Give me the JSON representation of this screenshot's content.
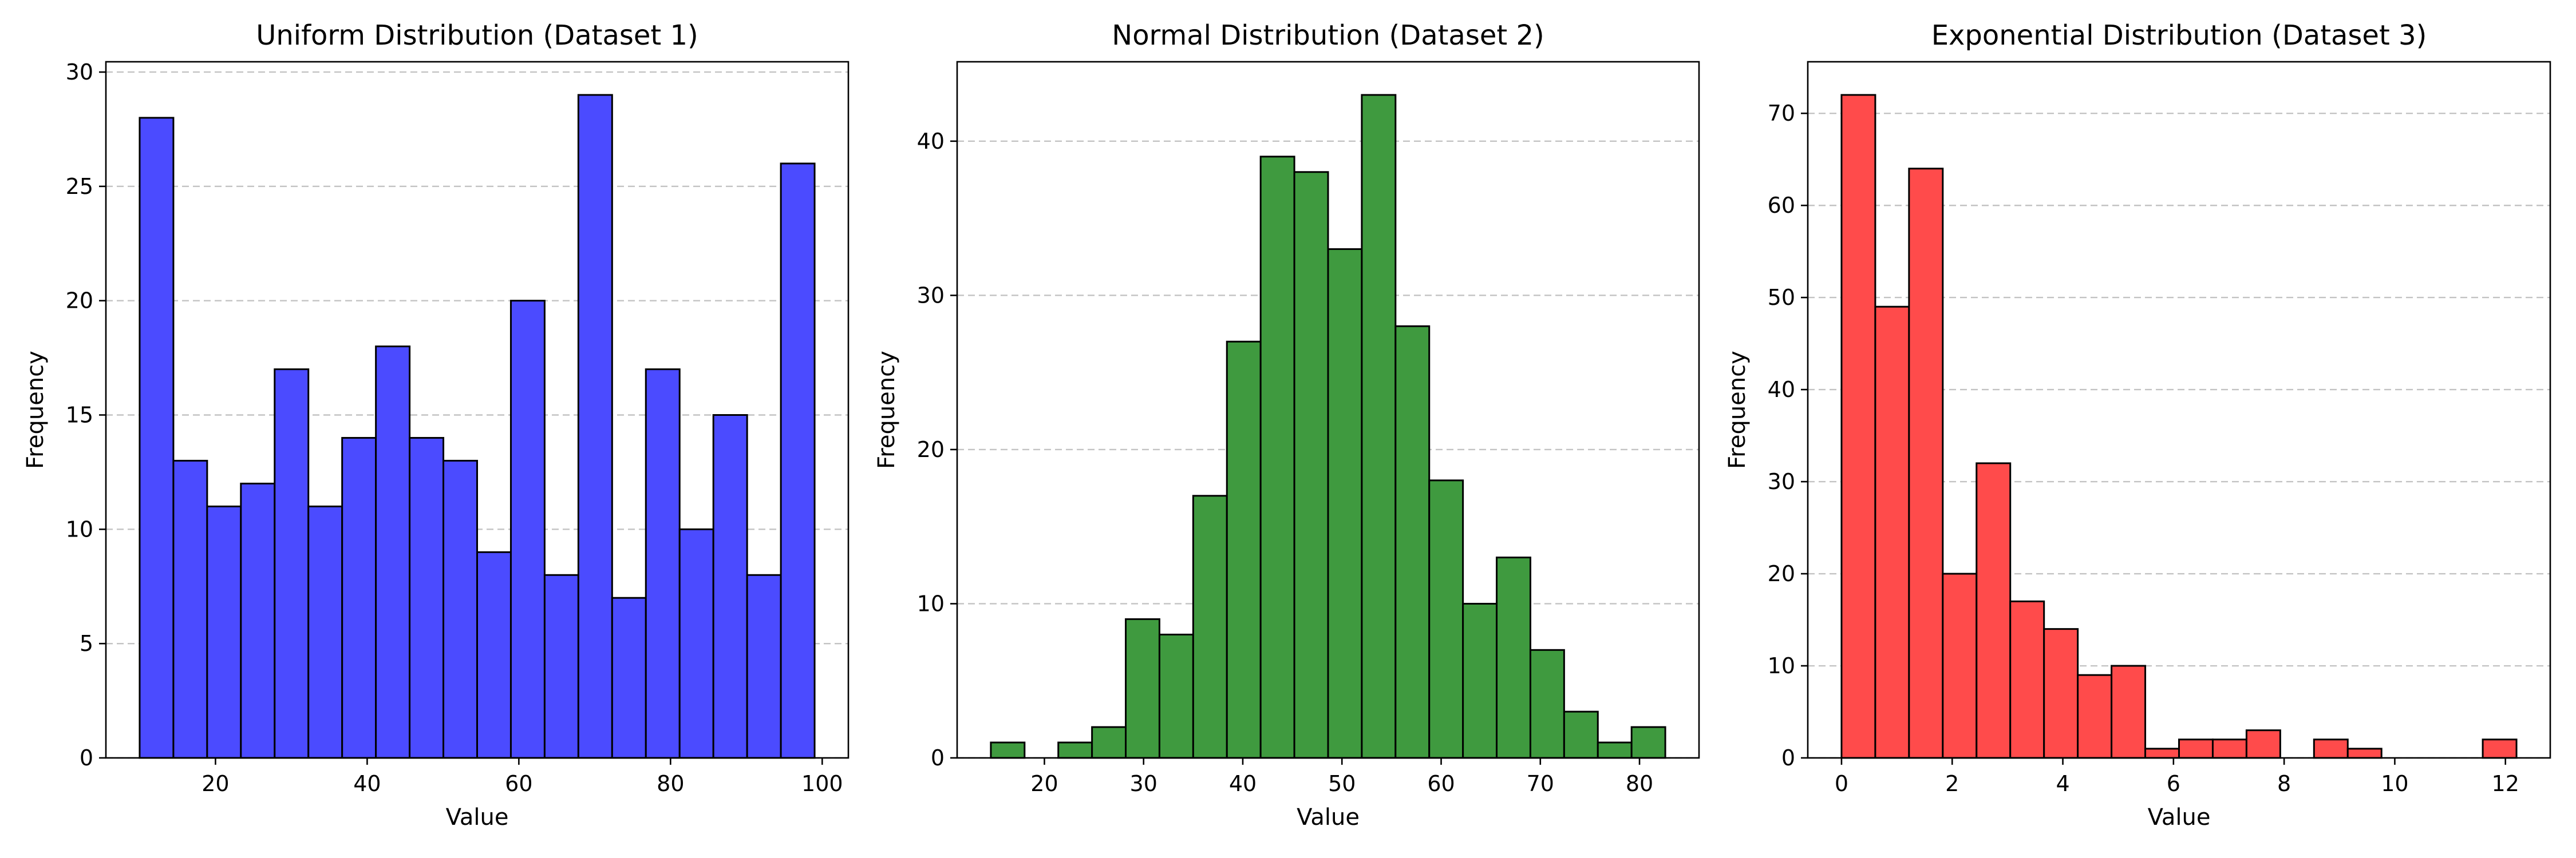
{
  "chart_data": [
    {
      "type": "bar",
      "title": "Uniform Distribution (Dataset 1)",
      "xlabel": "Value",
      "ylabel": "Frequency",
      "color": "#4b4bff",
      "grid": "y",
      "bin_edges": [
        10.0,
        14.45,
        18.9,
        23.35,
        27.8,
        32.25,
        36.7,
        41.15,
        45.6,
        50.05,
        54.5,
        58.95,
        63.4,
        67.85,
        72.3,
        76.75,
        81.2,
        85.65,
        90.1,
        94.55,
        99.0
      ],
      "values": [
        28,
        13,
        11,
        12,
        17,
        11,
        14,
        18,
        14,
        13,
        9,
        20,
        8,
        29,
        7,
        17,
        10,
        15,
        8,
        26
      ],
      "xlim": [
        5.55,
        103.45
      ],
      "ylim": [
        0,
        30.45
      ],
      "xticks": [
        20,
        40,
        60,
        80,
        100
      ],
      "yticks": [
        0,
        5,
        10,
        15,
        20,
        25,
        30
      ]
    },
    {
      "type": "bar",
      "title": "Normal Distribution (Dataset 2)",
      "xlabel": "Value",
      "ylabel": "Frequency",
      "color": "#3f9a3f",
      "grid": "y",
      "bin_edges": [
        14.6,
        18.0,
        21.4,
        24.8,
        28.2,
        31.6,
        35.0,
        38.4,
        41.8,
        45.2,
        48.6,
        52.0,
        55.4,
        58.8,
        62.2,
        65.6,
        69.0,
        72.4,
        75.8,
        79.2,
        82.6
      ],
      "values": [
        1,
        0,
        1,
        2,
        9,
        8,
        17,
        27,
        39,
        38,
        33,
        43,
        28,
        18,
        10,
        13,
        7,
        3,
        1,
        2
      ],
      "xlim": [
        11.2,
        86.0
      ],
      "ylim": [
        0,
        45.15
      ],
      "xticks": [
        20,
        30,
        40,
        50,
        60,
        70,
        80
      ],
      "yticks": [
        0,
        10,
        20,
        30,
        40
      ]
    },
    {
      "type": "bar",
      "title": "Exponential Distribution (Dataset 3)",
      "xlabel": "Value",
      "ylabel": "Frequency",
      "color": "#ff4b4b",
      "grid": "y",
      "bin_edges": [
        0.0,
        0.61,
        1.22,
        1.83,
        2.44,
        3.05,
        3.66,
        4.27,
        4.88,
        5.49,
        6.1,
        6.71,
        7.32,
        7.93,
        8.54,
        9.15,
        9.76,
        10.37,
        10.98,
        11.59,
        12.2
      ],
      "values": [
        72,
        49,
        64,
        20,
        32,
        17,
        14,
        9,
        10,
        1,
        2,
        2,
        3,
        0,
        2,
        1,
        0,
        0,
        0,
        2
      ],
      "xlim": [
        -0.61,
        12.81
      ],
      "ylim": [
        0,
        75.6
      ],
      "xticks": [
        0,
        2,
        4,
        6,
        8,
        10,
        12
      ],
      "yticks": [
        0,
        10,
        20,
        30,
        40,
        50,
        60,
        70
      ]
    }
  ]
}
